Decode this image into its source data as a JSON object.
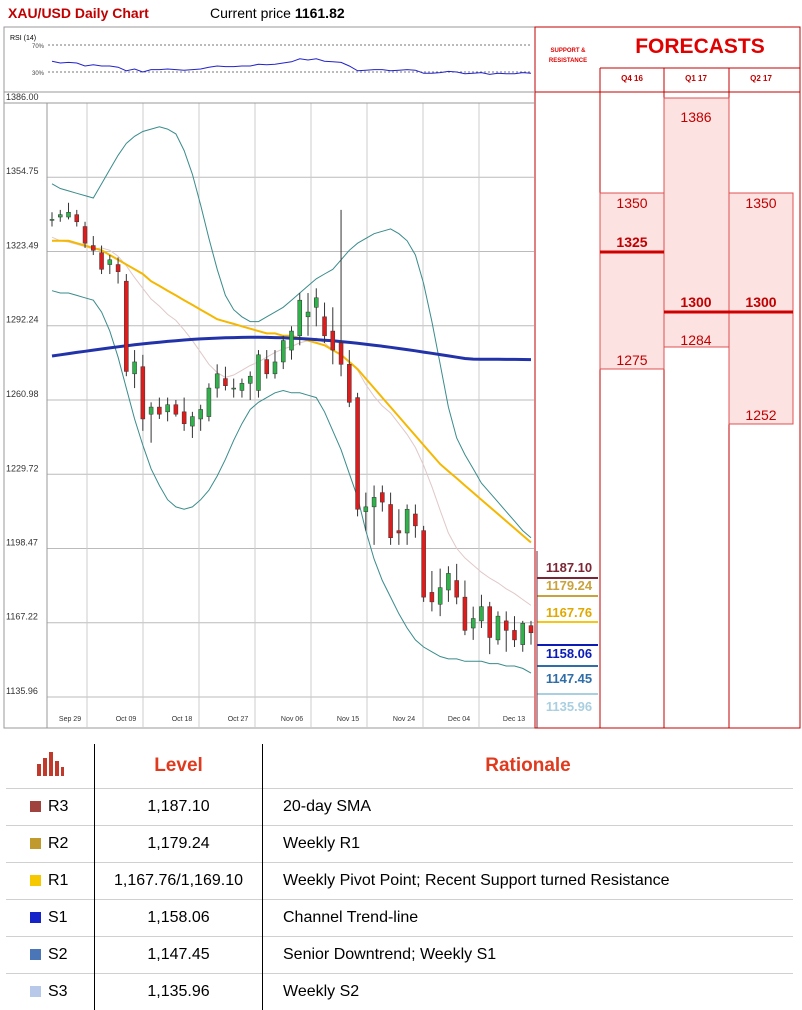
{
  "header": {
    "title": "XAU/USD Daily Chart",
    "price_label": "Current price",
    "price_value": "1161.82"
  },
  "rsi": {
    "label": "RSI (14)",
    "upper": "70%",
    "lower": "30%"
  },
  "forecast_panel": {
    "title": "FORECASTS",
    "sr_title": "SUPPORT & RESISTANCE",
    "quarters": [
      "Q4 16",
      "Q1 17",
      "Q2 17"
    ],
    "q4_values": [
      "1350",
      "1325",
      "1275"
    ],
    "q1_values": [
      "1386",
      "1300",
      "1284"
    ],
    "q2_values": [
      "1350",
      "1300",
      "1252"
    ]
  },
  "sr_labels": {
    "r3": "1187.10",
    "r2": "1179.24",
    "r1": "1167.76",
    "s1": "1158.06",
    "s2": "1147.45",
    "s3": "1135.96"
  },
  "colors": {
    "r3": "#7b2635",
    "r2": "#c9a23e",
    "r1": "#f5c518",
    "s1": "#0b1bb8",
    "s2": "#2f6da8",
    "s3": "#a9cfe0",
    "accent": "#e00000",
    "bull": "#2fb24a",
    "bear": "#e01b1b",
    "sma20": "#e6b8b8",
    "sma50": "#f5b700",
    "sma200": "#2233aa",
    "bands": "#3a8b8b"
  },
  "table": {
    "header_level": "Level",
    "header_rationale": "Rationale",
    "rows": [
      {
        "rank": "R3",
        "level": "1,187.10",
        "rationale": "20-day SMA",
        "color": "#a0433f"
      },
      {
        "rank": "R2",
        "level": "1,179.24",
        "rationale": "Weekly R1",
        "color": "#c09a2c"
      },
      {
        "rank": "R1",
        "level": "1,167.76/1,169.10",
        "rationale": "Weekly Pivot Point; Recent Support turned Resistance",
        "color": "#f5c800"
      },
      {
        "rank": "S1",
        "level": "1,158.06",
        "rationale": "Channel Trend-line",
        "color": "#1424c8"
      },
      {
        "rank": "S2",
        "level": "1,147.45",
        "rationale": "Senior Downtrend; Weekly S1",
        "color": "#4a76b8"
      },
      {
        "rank": "S3",
        "level": "1,135.96",
        "rationale": "Weekly S2",
        "color": "#b8c8e8"
      }
    ]
  },
  "chart_data": {
    "type": "candlestick",
    "title": "XAU/USD Daily Chart",
    "y_ticks": [
      1386.0,
      1354.75,
      1323.49,
      1292.24,
      1260.98,
      1229.72,
      1198.47,
      1167.22,
      1135.96
    ],
    "y_tick_labels": [
      "1386.00",
      "1354.75",
      "1323.49",
      "1292.24",
      "1260.98",
      "1229.72",
      "1198.47",
      "1167.22",
      "1135.96"
    ],
    "x_tick_labels": [
      "Sep 29",
      "Oct 09",
      "Oct 18",
      "Oct 27",
      "Nov 06",
      "Nov 15",
      "Nov 24",
      "Dec 04",
      "Dec 13"
    ],
    "ylim": [
      1131,
      1392
    ],
    "candles": [
      [
        1337,
        1340,
        1334,
        1337
      ],
      [
        1338,
        1341,
        1336,
        1339
      ],
      [
        1338,
        1344,
        1337,
        1340
      ],
      [
        1339,
        1341,
        1334,
        1336
      ],
      [
        1334,
        1336,
        1325,
        1327
      ],
      [
        1326,
        1330,
        1322,
        1324
      ],
      [
        1323,
        1326,
        1314,
        1316
      ],
      [
        1318,
        1322,
        1314,
        1320
      ],
      [
        1318,
        1321,
        1310,
        1315
      ],
      [
        1311,
        1314,
        1271,
        1273
      ],
      [
        1272,
        1282,
        1266,
        1277
      ],
      [
        1275,
        1280,
        1248,
        1253
      ],
      [
        1255,
        1260,
        1243,
        1258
      ],
      [
        1258,
        1262,
        1253,
        1255
      ],
      [
        1256,
        1262,
        1252,
        1259
      ],
      [
        1259,
        1261,
        1254,
        1255
      ],
      [
        1256,
        1262,
        1248,
        1251
      ],
      [
        1250,
        1256,
        1245,
        1254
      ],
      [
        1253,
        1259,
        1248,
        1257
      ],
      [
        1254,
        1268,
        1252,
        1266
      ],
      [
        1266,
        1276,
        1262,
        1272
      ],
      [
        1270,
        1275,
        1265,
        1267
      ],
      [
        1266,
        1270,
        1262,
        1266
      ],
      [
        1265,
        1270,
        1262,
        1268
      ],
      [
        1268,
        1273,
        1261,
        1271
      ],
      [
        1265,
        1282,
        1262,
        1280
      ],
      [
        1278,
        1282,
        1270,
        1272
      ],
      [
        1272,
        1282,
        1270,
        1277
      ],
      [
        1277,
        1288,
        1274,
        1286
      ],
      [
        1282,
        1292,
        1278,
        1290
      ],
      [
        1288,
        1306,
        1284,
        1303
      ],
      [
        1296,
        1306,
        1288,
        1298
      ],
      [
        1300,
        1308,
        1292,
        1304
      ],
      [
        1296,
        1302,
        1285,
        1288
      ],
      [
        1290,
        1300,
        1276,
        1282
      ],
      [
        1285,
        1341,
        1271,
        1276
      ],
      [
        1276,
        1282,
        1258,
        1260
      ],
      [
        1262,
        1264,
        1212,
        1215
      ],
      [
        1214,
        1222,
        1206,
        1216
      ],
      [
        1216,
        1225,
        1200,
        1220
      ],
      [
        1222,
        1225,
        1214,
        1218
      ],
      [
        1217,
        1222,
        1200,
        1203
      ],
      [
        1206,
        1215,
        1200,
        1205
      ],
      [
        1205,
        1217,
        1200,
        1215
      ],
      [
        1213,
        1217,
        1203,
        1208
      ],
      [
        1206,
        1208,
        1176,
        1178
      ],
      [
        1180,
        1189,
        1172,
        1176
      ],
      [
        1175,
        1190,
        1170,
        1182
      ],
      [
        1181,
        1191,
        1176,
        1188
      ],
      [
        1185,
        1192,
        1175,
        1178
      ],
      [
        1178,
        1185,
        1162,
        1164
      ],
      [
        1165,
        1174,
        1160,
        1169
      ],
      [
        1168,
        1179,
        1165,
        1174
      ],
      [
        1174,
        1176,
        1154,
        1161
      ],
      [
        1160,
        1172,
        1158,
        1170
      ],
      [
        1168,
        1172,
        1155,
        1164
      ],
      [
        1164,
        1170,
        1157,
        1160
      ],
      [
        1158,
        1168,
        1155,
        1167
      ],
      [
        1166,
        1168,
        1158,
        1163
      ]
    ]
  }
}
